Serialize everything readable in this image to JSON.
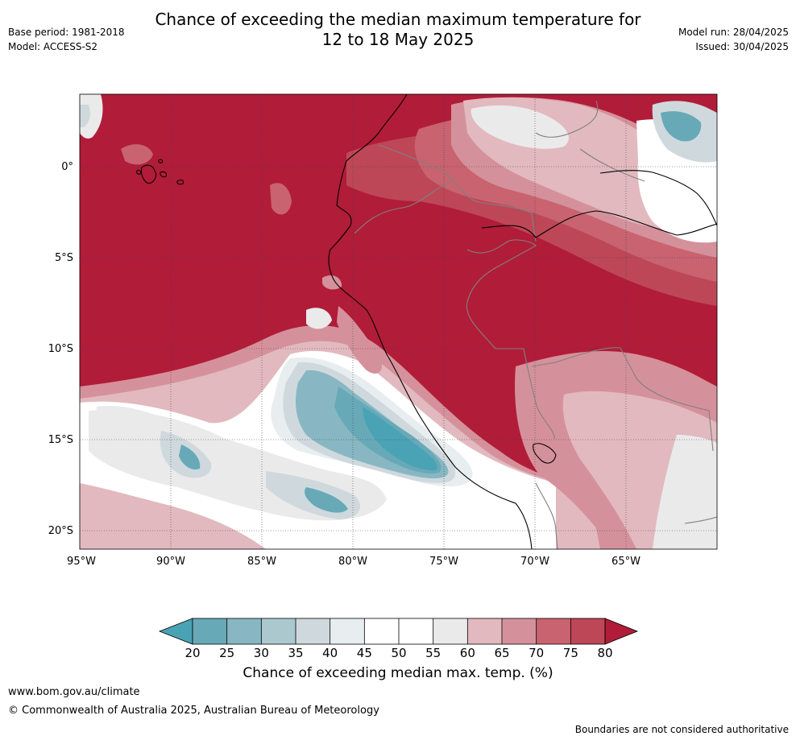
{
  "header": {
    "title_line_1": "Chance of exceeding the median maximum temperature for",
    "title_line_2": "12 to 18 May 2025",
    "base_period": "Base period: 1981-2018",
    "model": "Model: ACCESS-S2",
    "model_run": "Model run: 28/04/2025",
    "issued": "Issued: 30/04/2025"
  },
  "map": {
    "lon_labels": [
      "95°W",
      "90°W",
      "85°W",
      "80°W",
      "75°W",
      "70°W",
      "65°W"
    ],
    "lat_labels": [
      "0°",
      "5°S",
      "10°S",
      "15°S",
      "20°S"
    ],
    "background_color": "#b11c38",
    "colors": {
      "c15": "#4aa3b4",
      "c20": "#68a9b8",
      "c25": "#88b7c3",
      "c30": "#abc8cf",
      "c35": "#cfd9dd",
      "c40": "#e8eef0",
      "c45": "#ffffff",
      "c50": "#ffffff",
      "c55": "#eaeaeb",
      "c60": "#e2b9bf",
      "c65": "#d5919b",
      "c70": "#c8636f",
      "c75": "#bd4757",
      "c80": "#b11c38",
      "coast": "#000000",
      "border": "#808080",
      "grid": "#444444"
    }
  },
  "colorbar": {
    "ticks": [
      "20",
      "25",
      "30",
      "35",
      "40",
      "45",
      "50",
      "55",
      "60",
      "65",
      "70",
      "75",
      "80"
    ],
    "colors": [
      "#68a9b8",
      "#88b7c3",
      "#abc8cf",
      "#cfd9dd",
      "#e8eef0",
      "#ffffff",
      "#ffffff",
      "#eaeaeb",
      "#e2b9bf",
      "#d5919b",
      "#c8636f",
      "#bd4757"
    ],
    "low_color": "#4aa3b4",
    "high_color": "#b11c38",
    "title": "Chance of exceeding median max. temp. (%)"
  },
  "footer": {
    "url": "www.bom.gov.au/climate",
    "copyright": "© Commonwealth of Australia 2025, Australian Bureau of Meteorology",
    "note": "Boundaries are not considered authoritative"
  }
}
